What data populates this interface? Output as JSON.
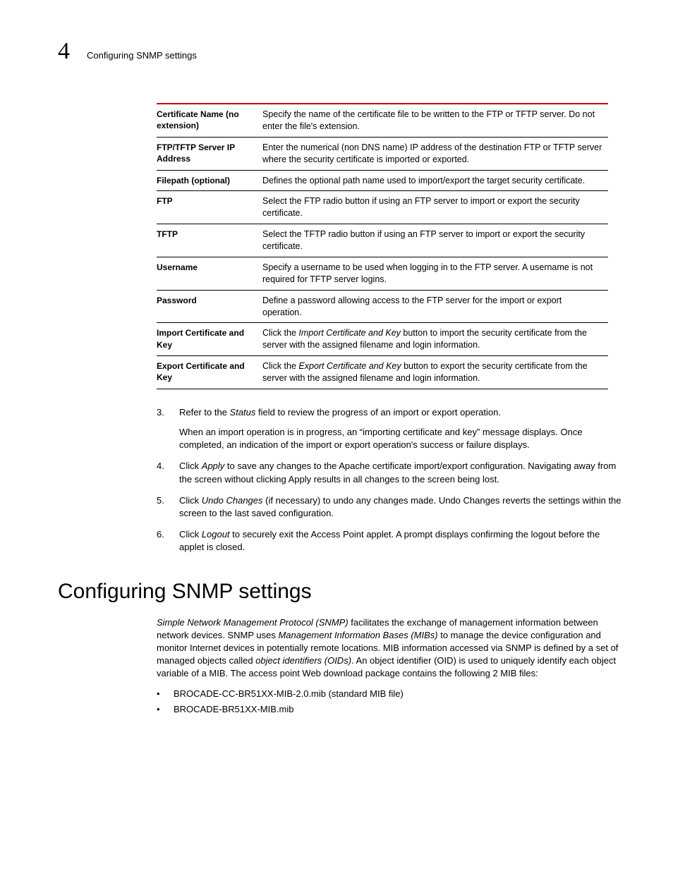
{
  "colors": {
    "table_top_border": "#cc0000",
    "text": "#000000",
    "background": "#ffffff"
  },
  "runhead": {
    "chapter_number": "4",
    "chapter_title": "Configuring SNMP settings"
  },
  "table": {
    "rows": [
      {
        "label": "Certificate Name (no extension)",
        "segments": [
          {
            "t": "Specify the name of the certificate file to be written to the FTP or TFTP server. Do not enter the file's extension."
          }
        ]
      },
      {
        "label": "FTP/TFTP Server IP Address",
        "segments": [
          {
            "t": "Enter the numerical (non DNS name) IP address of the destination FTP or TFTP server where the security certificate is imported or exported."
          }
        ]
      },
      {
        "label": "Filepath (optional)",
        "segments": [
          {
            "t": "Defines the optional path name used to import/export the target security certificate."
          }
        ]
      },
      {
        "label": "FTP",
        "segments": [
          {
            "t": "Select the FTP radio button if using an FTP server to import or export the security certificate."
          }
        ]
      },
      {
        "label": "TFTP",
        "segments": [
          {
            "t": "Select the TFTP radio button if using an FTP server to import or export the security certificate."
          }
        ]
      },
      {
        "label": "Username",
        "segments": [
          {
            "t": "Specify a username to be used when logging in to the FTP server. A username is not required for TFTP server logins."
          }
        ]
      },
      {
        "label": "Password",
        "segments": [
          {
            "t": "Define a password allowing access to the FTP server for the import or export operation."
          }
        ]
      },
      {
        "label": "Import Certificate and Key",
        "segments": [
          {
            "t": "Click the "
          },
          {
            "t": "Import Certificate and Key",
            "i": true
          },
          {
            "t": " button to import the security certificate from the server with the assigned filename and login information."
          }
        ]
      },
      {
        "label": "Export Certificate and Key",
        "segments": [
          {
            "t": "Click the "
          },
          {
            "t": "Export Certificate and Key",
            "i": true
          },
          {
            "t": " button to export the security certificate from the server with the assigned filename and login information."
          }
        ]
      }
    ]
  },
  "steps": [
    {
      "num": "3.",
      "paras": [
        [
          {
            "t": "Refer to the "
          },
          {
            "t": "Status",
            "i": true
          },
          {
            "t": " field to review the progress of an import or export operation."
          }
        ],
        [
          {
            "t": "When an import operation is in progress, an “importing certificate and key” message displays. Once completed, an indication of the import or export operation's success or failure displays."
          }
        ]
      ]
    },
    {
      "num": "4.",
      "paras": [
        [
          {
            "t": "Click "
          },
          {
            "t": "Apply",
            "i": true
          },
          {
            "t": " to save any changes to the Apache certificate import/export configuration. Navigating away from the screen without clicking Apply results in all changes to the screen being lost."
          }
        ]
      ]
    },
    {
      "num": "5.",
      "paras": [
        [
          {
            "t": "Click "
          },
          {
            "t": "Undo Changes",
            "i": true
          },
          {
            "t": " (if necessary) to undo any changes made. Undo Changes reverts the settings within the screen to the last saved configuration."
          }
        ]
      ]
    },
    {
      "num": "6.",
      "paras": [
        [
          {
            "t": "Click "
          },
          {
            "t": "Logout",
            "i": true
          },
          {
            "t": " to securely exit the Access Point applet. A prompt displays confirming the logout before the applet is closed."
          }
        ]
      ]
    }
  ],
  "heading": "Configuring SNMP settings",
  "intro": {
    "para_segments": [
      {
        "t": "Simple Network Management Protocol (SNMP)",
        "i": true
      },
      {
        "t": " facilitates the exchange of management information between network devices. SNMP uses "
      },
      {
        "t": "Management Information Bases (MIBs)",
        "i": true
      },
      {
        "t": " to manage the device configuration and monitor Internet devices in potentially remote locations. MIB information accessed via SNMP is defined by a set of managed objects called "
      },
      {
        "t": "object identifiers (OIDs)",
        "i": true
      },
      {
        "t": ". An object identifier (OID) is used to uniquely identify each object variable of a MIB. The access point Web download package contains the following 2 MIB files:"
      }
    ],
    "bullets": [
      "BROCADE-CC-BR51XX-MIB-2.0.mib (standard MIB file)",
      "BROCADE-BR51XX-MIB.mib"
    ]
  }
}
